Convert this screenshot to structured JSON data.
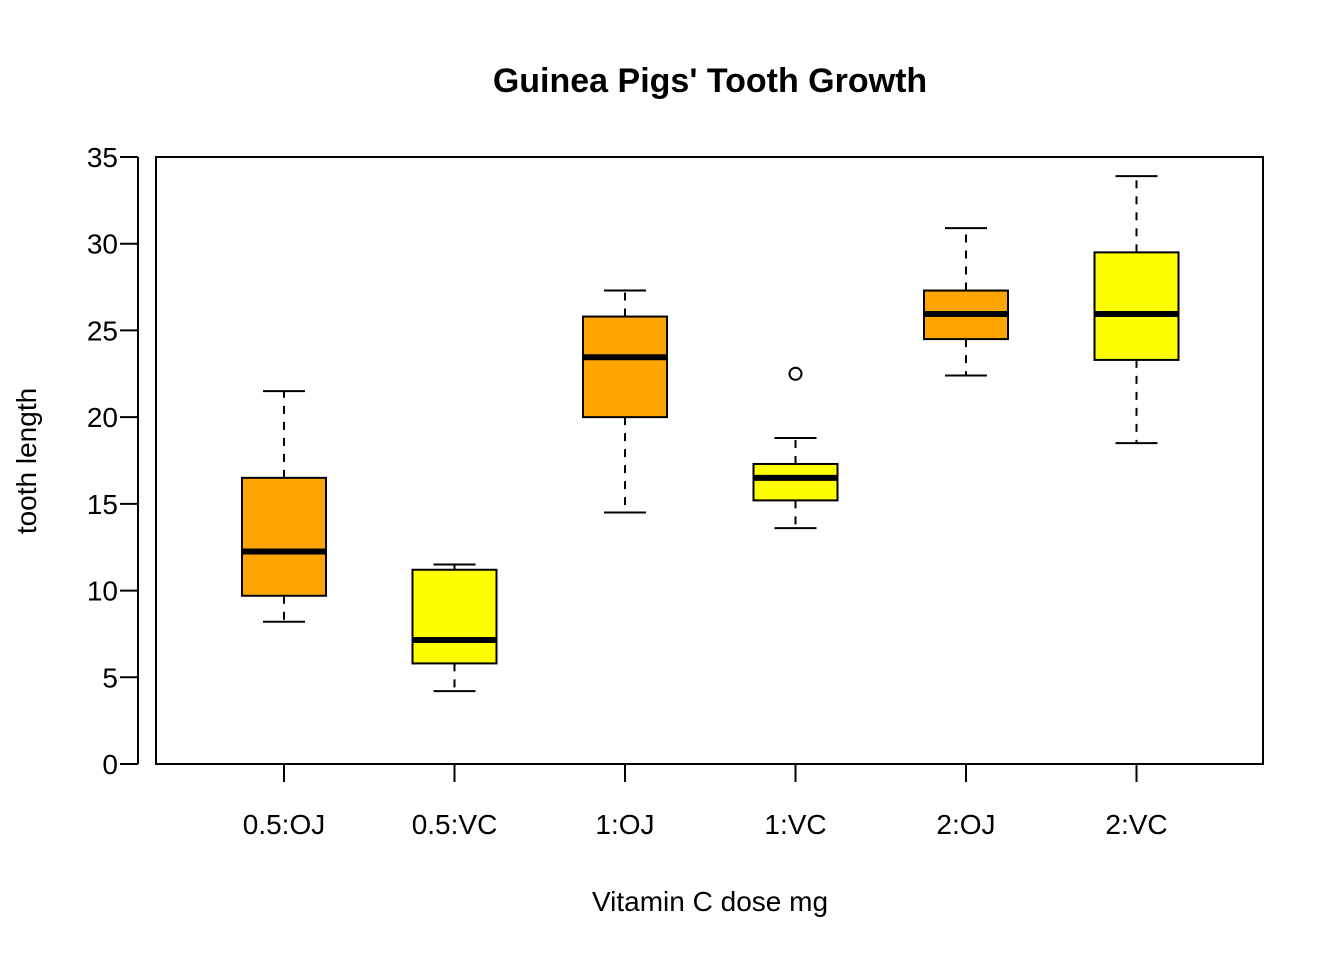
{
  "chart_data": {
    "type": "boxplot",
    "title": "Guinea Pigs' Tooth Growth",
    "xlabel": "Vitamin C dose mg",
    "ylabel": "tooth length",
    "ylim": [
      0,
      35
    ],
    "yticks": [
      0,
      5,
      10,
      15,
      20,
      25,
      30,
      35
    ],
    "categories": [
      "0.5:OJ",
      "0.5:VC",
      "1:OJ",
      "1:VC",
      "2:OJ",
      "2:VC"
    ],
    "boxes": [
      {
        "label": "0.5:OJ",
        "min": 8.2,
        "q1": 9.7,
        "median": 12.25,
        "q3": 16.5,
        "max": 21.5,
        "outliers": [],
        "color": "#FFA500"
      },
      {
        "label": "0.5:VC",
        "min": 4.2,
        "q1": 5.8,
        "median": 7.15,
        "q3": 11.2,
        "max": 11.5,
        "outliers": [],
        "color": "#FFFF00"
      },
      {
        "label": "1:OJ",
        "min": 14.5,
        "q1": 20.0,
        "median": 23.45,
        "q3": 25.8,
        "max": 27.3,
        "outliers": [],
        "color": "#FFA500"
      },
      {
        "label": "1:VC",
        "min": 13.6,
        "q1": 15.2,
        "median": 16.5,
        "q3": 17.3,
        "max": 18.8,
        "outliers": [
          22.5
        ],
        "color": "#FFFF00"
      },
      {
        "label": "2:OJ",
        "min": 22.4,
        "q1": 24.5,
        "median": 25.95,
        "q3": 27.3,
        "max": 30.9,
        "outliers": [],
        "color": "#FFA500"
      },
      {
        "label": "2:VC",
        "min": 18.5,
        "q1": 23.3,
        "median": 25.95,
        "q3": 29.5,
        "max": 33.9,
        "outliers": [],
        "color": "#FFFF00"
      }
    ]
  }
}
